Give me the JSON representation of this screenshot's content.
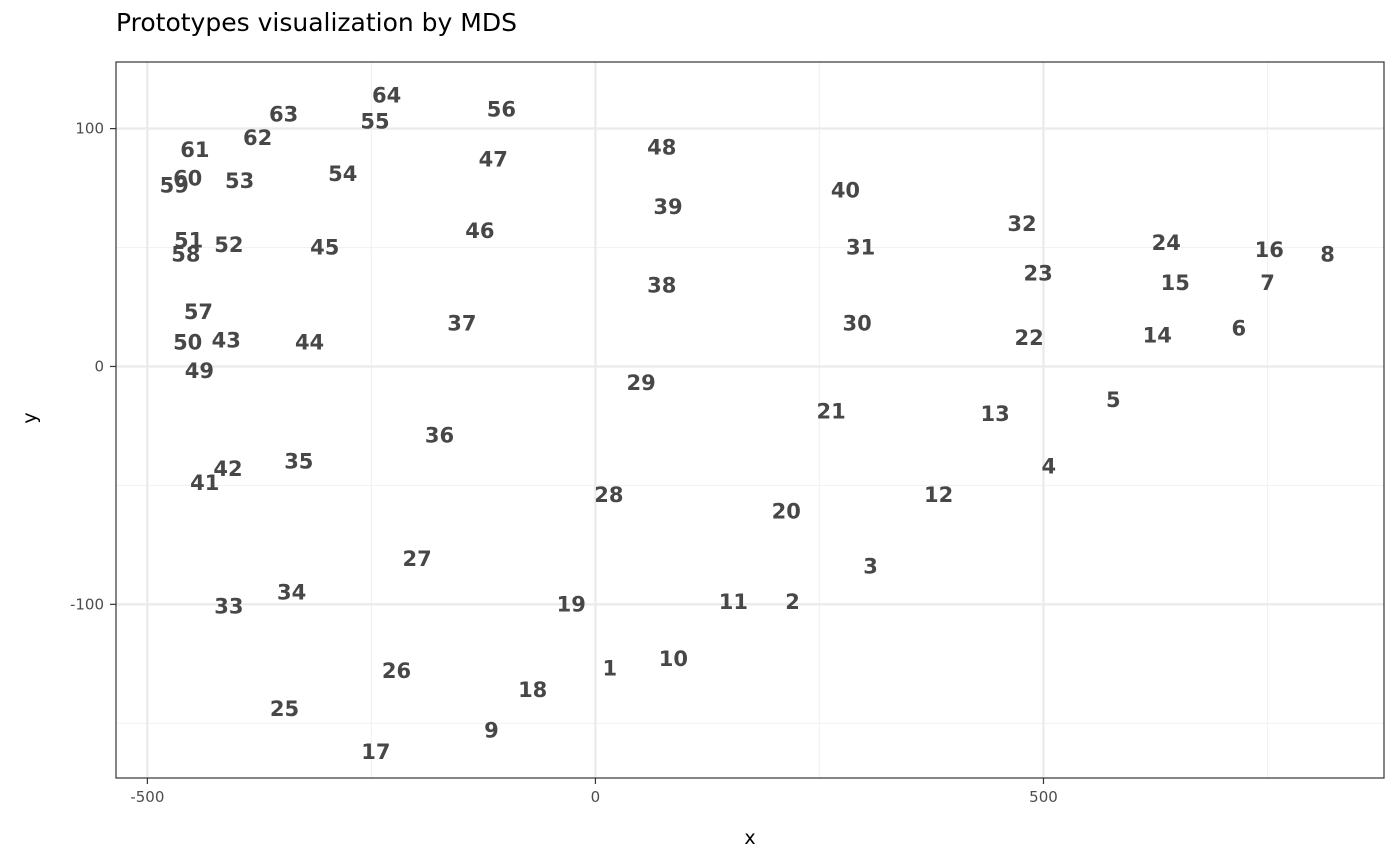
{
  "title": "Prototypes visualization by MDS",
  "chart_data": {
    "type": "scatter",
    "title": "Prototypes visualization by MDS",
    "xlabel": "x",
    "ylabel": "y",
    "xlim": [
      -535,
      880
    ],
    "ylim": [
      -173,
      128
    ],
    "xticks": [
      -500,
      0,
      500
    ],
    "yticks": [
      -100,
      0,
      100
    ],
    "xtick_labels": [
      "-500",
      "0",
      "500"
    ],
    "ytick_labels": [
      "-100",
      "0",
      "100"
    ],
    "grid": true,
    "panel_border": true,
    "points": [
      {
        "label": "1",
        "x": 16,
        "y": -127
      },
      {
        "label": "2",
        "x": 220,
        "y": -99
      },
      {
        "label": "3",
        "x": 307,
        "y": -84
      },
      {
        "label": "4",
        "x": 506,
        "y": -42
      },
      {
        "label": "5",
        "x": 578,
        "y": -14
      },
      {
        "label": "6",
        "x": 718,
        "y": 16
      },
      {
        "label": "7",
        "x": 750,
        "y": 35
      },
      {
        "label": "8",
        "x": 817,
        "y": 47
      },
      {
        "label": "9",
        "x": -116,
        "y": -153
      },
      {
        "label": "10",
        "x": 87,
        "y": -123
      },
      {
        "label": "11",
        "x": 154,
        "y": -99
      },
      {
        "label": "12",
        "x": 383,
        "y": -54
      },
      {
        "label": "13",
        "x": 446,
        "y": -20
      },
      {
        "label": "14",
        "x": 627,
        "y": 13
      },
      {
        "label": "15",
        "x": 647,
        "y": 35
      },
      {
        "label": "16",
        "x": 752,
        "y": 49
      },
      {
        "label": "17",
        "x": -245,
        "y": -162
      },
      {
        "label": "18",
        "x": -70,
        "y": -136
      },
      {
        "label": "19",
        "x": -27,
        "y": -100
      },
      {
        "label": "20",
        "x": 213,
        "y": -61
      },
      {
        "label": "21",
        "x": 263,
        "y": -19
      },
      {
        "label": "22",
        "x": 484,
        "y": 12
      },
      {
        "label": "23",
        "x": 494,
        "y": 39
      },
      {
        "label": "24",
        "x": 637,
        "y": 52
      },
      {
        "label": "25",
        "x": -347,
        "y": -144
      },
      {
        "label": "26",
        "x": -222,
        "y": -128
      },
      {
        "label": "27",
        "x": -199,
        "y": -81
      },
      {
        "label": "28",
        "x": 15,
        "y": -54
      },
      {
        "label": "29",
        "x": 51,
        "y": -7
      },
      {
        "label": "30",
        "x": 292,
        "y": 18
      },
      {
        "label": "31",
        "x": 296,
        "y": 50
      },
      {
        "label": "32",
        "x": 476,
        "y": 60
      },
      {
        "label": "33",
        "x": -409,
        "y": -101
      },
      {
        "label": "34",
        "x": -339,
        "y": -95
      },
      {
        "label": "35",
        "x": -331,
        "y": -40
      },
      {
        "label": "36",
        "x": -174,
        "y": -29
      },
      {
        "label": "37",
        "x": -149,
        "y": 18
      },
      {
        "label": "38",
        "x": 74,
        "y": 34
      },
      {
        "label": "39",
        "x": 81,
        "y": 67
      },
      {
        "label": "40",
        "x": 279,
        "y": 74
      },
      {
        "label": "41",
        "x": -436,
        "y": -49
      },
      {
        "label": "42",
        "x": -410,
        "y": -43
      },
      {
        "label": "43",
        "x": -412,
        "y": 11
      },
      {
        "label": "44",
        "x": -319,
        "y": 10
      },
      {
        "label": "45",
        "x": -302,
        "y": 50
      },
      {
        "label": "46",
        "x": -129,
        "y": 57
      },
      {
        "label": "47",
        "x": -114,
        "y": 87
      },
      {
        "label": "48",
        "x": 74,
        "y": 92
      },
      {
        "label": "49",
        "x": -442,
        "y": -2
      },
      {
        "label": "50",
        "x": -455,
        "y": 10
      },
      {
        "label": "51",
        "x": -454,
        "y": 53
      },
      {
        "label": "52",
        "x": -409,
        "y": 51
      },
      {
        "label": "53",
        "x": -397,
        "y": 78
      },
      {
        "label": "54",
        "x": -282,
        "y": 81
      },
      {
        "label": "55",
        "x": -246,
        "y": 103
      },
      {
        "label": "56",
        "x": -105,
        "y": 108
      },
      {
        "label": "57",
        "x": -443,
        "y": 23
      },
      {
        "label": "58",
        "x": -457,
        "y": 47
      },
      {
        "label": "59",
        "x": -470,
        "y": 76
      },
      {
        "label": "60",
        "x": -455,
        "y": 79
      },
      {
        "label": "61",
        "x": -447,
        "y": 91
      },
      {
        "label": "62",
        "x": -377,
        "y": 96
      },
      {
        "label": "63",
        "x": -348,
        "y": 106
      },
      {
        "label": "64",
        "x": -233,
        "y": 114
      }
    ]
  }
}
